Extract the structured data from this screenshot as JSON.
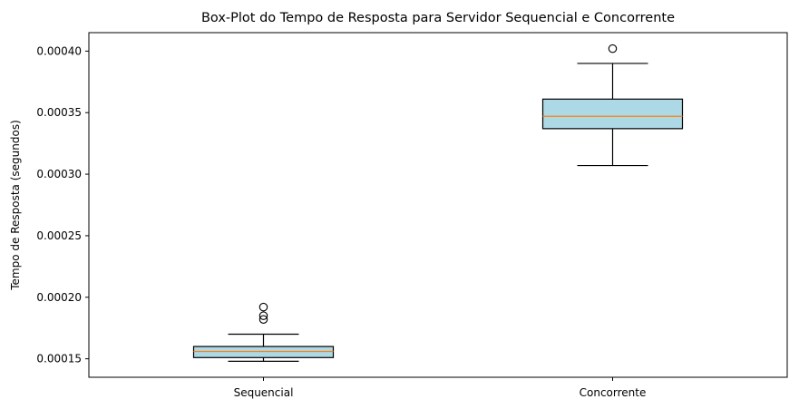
{
  "chart_data": {
    "type": "boxplot",
    "title": "Box-Plot do Tempo de Resposta para Servidor Sequencial e Concorrente",
    "xlabel": "",
    "ylabel": "Tempo de Resposta (segundos)",
    "ylim": [
      0.000135,
      0.000415
    ],
    "yticks": [
      0.00015,
      0.0002,
      0.00025,
      0.0003,
      0.00035,
      0.0004
    ],
    "ytick_labels": [
      "0.00015",
      "0.00020",
      "0.00025",
      "0.00030",
      "0.00035",
      "0.00040"
    ],
    "grid": false,
    "categories": [
      "Sequencial",
      "Concorrente"
    ],
    "boxes": [
      {
        "label": "Sequencial",
        "whisker_low": 0.000148,
        "q1": 0.000151,
        "median": 0.000156,
        "q3": 0.00016,
        "whisker_high": 0.00017,
        "outliers": [
          0.000182,
          0.000185,
          0.000192
        ]
      },
      {
        "label": "Concorrente",
        "whisker_low": 0.000307,
        "q1": 0.000337,
        "median": 0.000347,
        "q3": 0.000361,
        "whisker_high": 0.00039,
        "outliers": [
          0.000402
        ]
      }
    ],
    "colors": {
      "box_fill": "#add8e6",
      "median": "#ff7f0e",
      "lines": "#000000"
    }
  }
}
